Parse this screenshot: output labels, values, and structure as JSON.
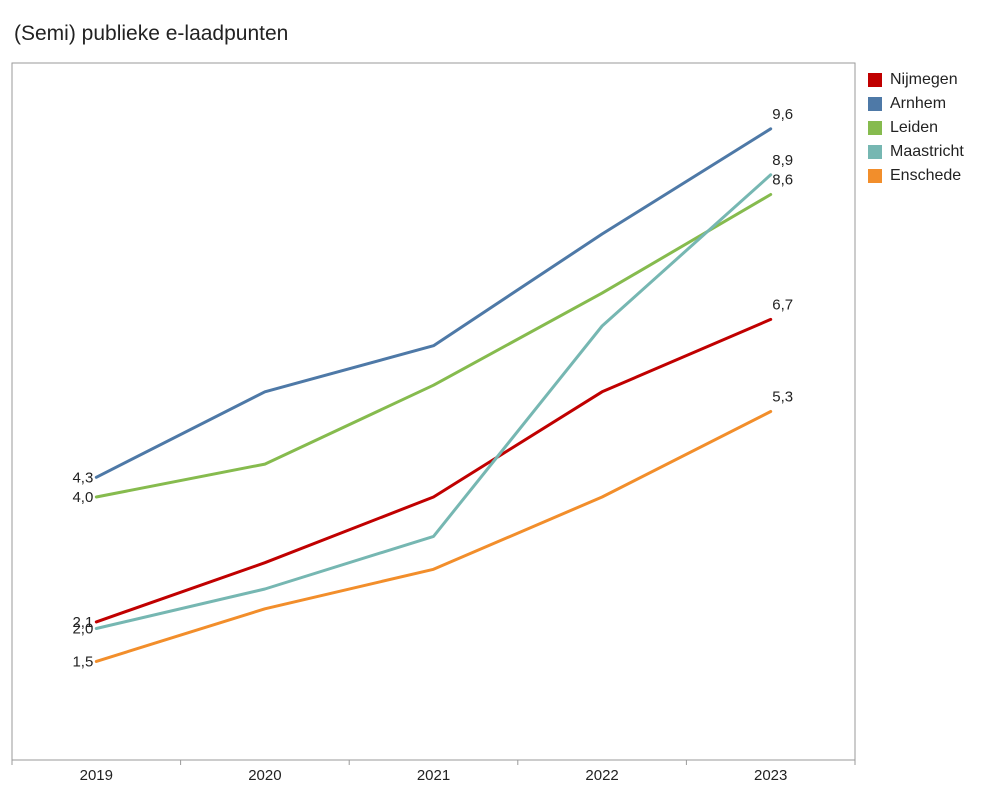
{
  "title": "(Semi) publieke e-laadpunten",
  "chart_data": {
    "type": "line",
    "title": "(Semi) publieke e-laadpunten",
    "xlabel": "",
    "ylabel": "",
    "x": [
      "2019",
      "2020",
      "2021",
      "2022",
      "2023"
    ],
    "ylim": [
      0,
      10.6
    ],
    "grid": false,
    "legend_position": "right",
    "series": [
      {
        "name": "Nijmegen",
        "color": "#c00000",
        "values": [
          2.1,
          3.0,
          4.0,
          5.6,
          6.7
        ],
        "end_labels": [
          "2,1",
          "6,7"
        ]
      },
      {
        "name": "Arnhem",
        "color": "#4e79a7",
        "values": [
          4.3,
          5.6,
          6.3,
          8.0,
          9.6
        ],
        "end_labels": [
          "4,3",
          "9,6"
        ]
      },
      {
        "name": "Leiden",
        "color": "#86bb4e",
        "values": [
          4.0,
          4.5,
          5.7,
          7.1,
          8.6
        ],
        "end_labels": [
          "4,0",
          "8,6"
        ]
      },
      {
        "name": "Maastricht",
        "color": "#76b7b2",
        "values": [
          2.0,
          2.6,
          3.4,
          6.6,
          8.9
        ],
        "end_labels": [
          "2,0",
          "8,9"
        ]
      },
      {
        "name": "Enschede",
        "color": "#f28e2b",
        "values": [
          1.5,
          2.3,
          2.9,
          4.0,
          5.3
        ],
        "end_labels": [
          "1,5",
          "5,3"
        ]
      }
    ]
  }
}
